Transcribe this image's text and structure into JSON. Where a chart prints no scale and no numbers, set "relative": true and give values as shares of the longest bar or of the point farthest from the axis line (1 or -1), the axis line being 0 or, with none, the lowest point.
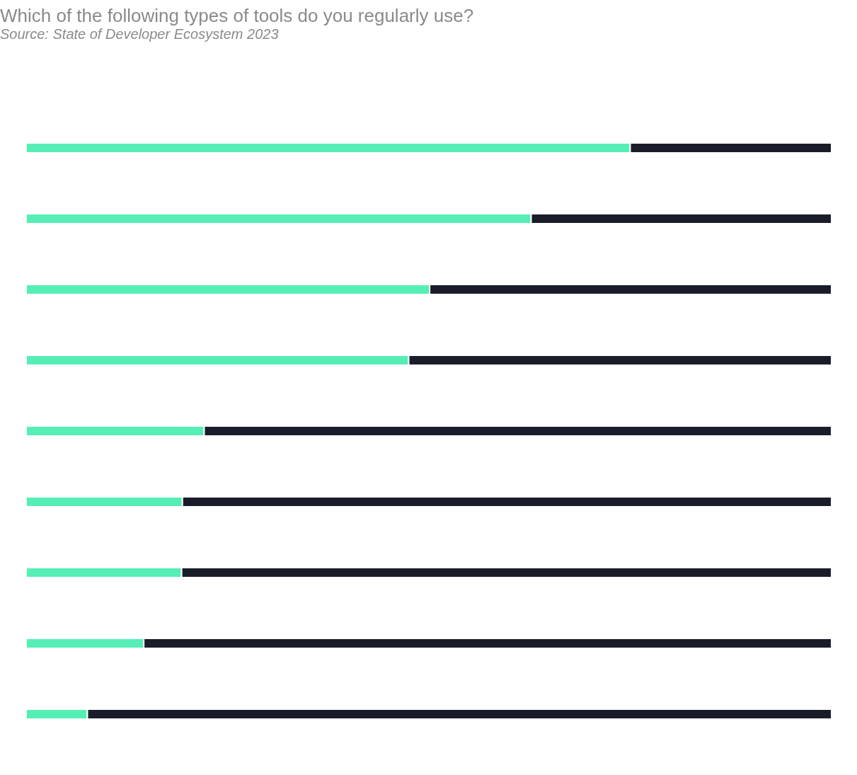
{
  "chart_data": {
    "type": "bar",
    "orientation": "horizontal",
    "stacked": true,
    "title": "Which of the following types of tools do you regularly use?",
    "subtitle": "Source: State of Developer Ecosystem 2023",
    "categories": [
      null,
      null,
      null,
      null,
      null,
      null,
      null,
      null,
      null
    ],
    "series": [
      {
        "color": "#55efb5",
        "values": [
          0.75,
          0.627,
          0.501,
          0.475,
          0.221,
          0.194,
          0.193,
          0.146,
          0.076
        ]
      },
      {
        "color": "#1a1d29",
        "values": [
          0.25,
          0.373,
          0.499,
          0.525,
          0.779,
          0.806,
          0.807,
          0.854,
          0.924
        ]
      }
    ],
    "relative": true
  }
}
